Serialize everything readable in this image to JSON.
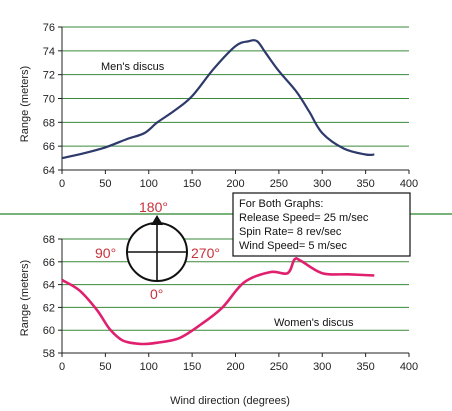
{
  "colors": {
    "men_line": "#2e3a6b",
    "women_line": "#e0206e",
    "gridline": "#3a8a3a",
    "separator": "#4e9a4e",
    "compass_text": "#c8323a",
    "axis": "#222222"
  },
  "compass": {
    "top": "180°",
    "left": "90°",
    "right": "270°",
    "bottom": "0°"
  },
  "info_box": {
    "lines": [
      "For Both Graphs:",
      "Release Speed= 25 m/sec",
      "Spin Rate= 8 rev/sec",
      "Wind Speed= 5 m/sec"
    ]
  },
  "chart_data": [
    {
      "type": "line",
      "annotation": "Men's discus",
      "xlabel": "",
      "ylabel": "Range (meters)",
      "xlim": [
        0,
        400
      ],
      "ylim": [
        64,
        76
      ],
      "xticks": [
        0,
        50,
        100,
        150,
        200,
        250,
        300,
        350,
        400
      ],
      "yticks": [
        64,
        66,
        68,
        70,
        72,
        74,
        76
      ],
      "grid": "horizontal",
      "series": [
        {
          "x": [
            0,
            25,
            50,
            75,
            95,
            110,
            130,
            150,
            175,
            200,
            215,
            225,
            235,
            250,
            270,
            285,
            300,
            325,
            350,
            360
          ],
          "y": [
            65.0,
            65.4,
            65.9,
            66.6,
            67.1,
            68.0,
            69.0,
            70.2,
            72.5,
            74.4,
            74.8,
            74.8,
            73.8,
            72.3,
            70.6,
            68.9,
            67.1,
            65.8,
            65.3,
            65.3
          ]
        }
      ]
    },
    {
      "type": "line",
      "annotation": "Women's discus",
      "xlabel": "Wind direction (degrees)",
      "ylabel": "Range (meters)",
      "xlim": [
        0,
        400
      ],
      "ylim": [
        58,
        68
      ],
      "xticks": [
        0,
        50,
        100,
        150,
        200,
        250,
        300,
        350,
        400
      ],
      "yticks": [
        58,
        60,
        62,
        64,
        66,
        68
      ],
      "grid": "horizontal",
      "series": [
        {
          "x": [
            0,
            20,
            40,
            55,
            70,
            90,
            110,
            135,
            160,
            185,
            210,
            240,
            260,
            268,
            275,
            300,
            330,
            360
          ],
          "y": [
            64.4,
            63.5,
            61.8,
            60.1,
            59.1,
            58.8,
            58.9,
            59.3,
            60.5,
            62.0,
            64.2,
            65.1,
            65.0,
            66.2,
            66.1,
            65.0,
            64.9,
            64.8
          ]
        }
      ]
    }
  ]
}
